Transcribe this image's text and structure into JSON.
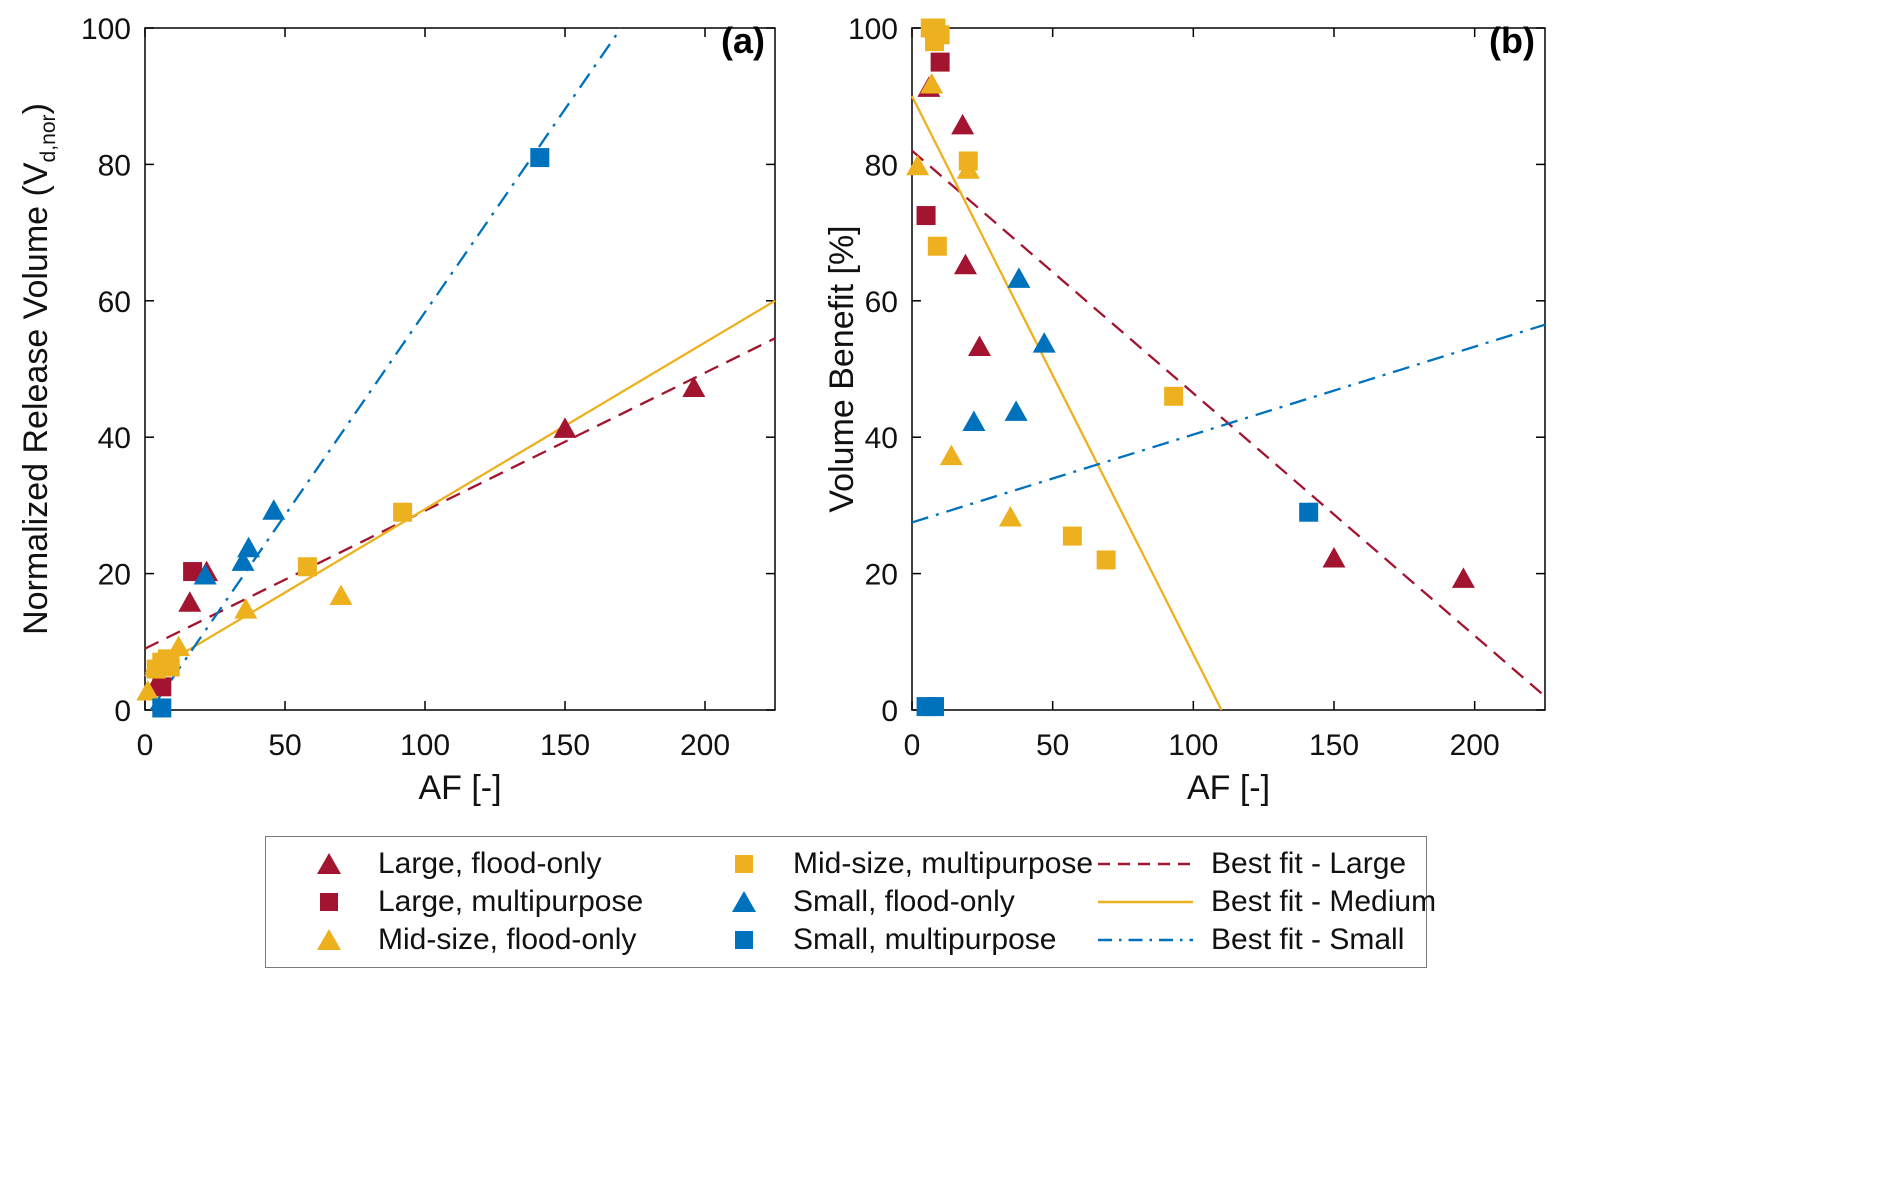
{
  "colors": {
    "large": "#A2142F",
    "medium": "#EDB120",
    "small": "#0072BD"
  },
  "legend": {
    "items": [
      {
        "label": "Large, flood-only",
        "icon": "marker",
        "shape": "triangle",
        "color": "large"
      },
      {
        "label": "Large, multipurpose",
        "icon": "marker",
        "shape": "square",
        "color": "large"
      },
      {
        "label": "Mid-size, flood-only",
        "icon": "marker",
        "shape": "triangle",
        "color": "medium"
      },
      {
        "label": "Mid-size, multipurpose",
        "icon": "marker",
        "shape": "square",
        "color": "medium"
      },
      {
        "label": "Small, flood-only",
        "icon": "marker",
        "shape": "triangle",
        "color": "small"
      },
      {
        "label": "Small, multipurpose",
        "icon": "marker",
        "shape": "square",
        "color": "small"
      },
      {
        "label": "Best fit - Large",
        "icon": "line",
        "dash": "dashed",
        "color": "large"
      },
      {
        "label": "Best fit - Medium",
        "icon": "line",
        "dash": "solid",
        "color": "medium"
      },
      {
        "label": "Best fit - Small",
        "icon": "line",
        "dash": "dashdot",
        "color": "small"
      }
    ]
  },
  "chart_data": [
    {
      "id": "a",
      "type": "scatter",
      "panel_label": "(a)",
      "xlabel": "AF [-]",
      "ylabel": "Normalized Release Volume (V_d,nor)",
      "ylabel_parts": {
        "pre": "Normalized Release Volume (V",
        "sub": "d,nor",
        "post": ")"
      },
      "xlim": [
        0,
        225
      ],
      "ylim": [
        0,
        100
      ],
      "xticks": [
        0,
        50,
        100,
        150,
        200
      ],
      "yticks": [
        0,
        20,
        40,
        60,
        80,
        100
      ],
      "grid": false,
      "series": [
        {
          "name": "Large, flood-only",
          "marker": "triangle",
          "color": "large",
          "points": [
            [
              4,
              3.5
            ],
            [
              16,
              15.5
            ],
            [
              22,
              20
            ],
            [
              150,
              41
            ],
            [
              196,
              47
            ]
          ]
        },
        {
          "name": "Large, multipurpose",
          "marker": "square",
          "color": "large",
          "points": [
            [
              6,
              3.4
            ],
            [
              17,
              20.3
            ]
          ]
        },
        {
          "name": "Mid-size, flood-only",
          "marker": "triangle",
          "color": "medium",
          "points": [
            [
              1,
              2.5
            ],
            [
              4,
              6.5
            ],
            [
              12,
              9
            ],
            [
              36,
              14.5
            ],
            [
              70,
              16.5
            ]
          ]
        },
        {
          "name": "Mid-size, multipurpose",
          "marker": "square",
          "color": "medium",
          "points": [
            [
              4,
              6
            ],
            [
              6,
              7
            ],
            [
              8,
              7.5
            ],
            [
              9,
              6.3
            ],
            [
              58,
              21
            ],
            [
              92,
              29
            ]
          ]
        },
        {
          "name": "Small, flood-only",
          "marker": "triangle",
          "color": "small",
          "points": [
            [
              21.5,
              19.5
            ],
            [
              35,
              21.5
            ],
            [
              37,
              23.5
            ],
            [
              46,
              29
            ]
          ]
        },
        {
          "name": "Small, multipurpose",
          "marker": "square",
          "color": "small",
          "points": [
            [
              6,
              0.3
            ],
            [
              141,
              81
            ]
          ]
        }
      ],
      "fit_lines": [
        {
          "name": "Best fit - Large",
          "color": "large",
          "dash": "dashed",
          "points": [
            [
              0,
              9
            ],
            [
              225,
              54.5
            ]
          ]
        },
        {
          "name": "Best fit - Medium",
          "color": "medium",
          "dash": "solid",
          "points": [
            [
              0,
              5
            ],
            [
              225,
              60
            ]
          ]
        },
        {
          "name": "Best fit - Small",
          "color": "small",
          "dash": "dashdot",
          "points": [
            [
              2,
              0
            ],
            [
              170,
              100
            ]
          ]
        }
      ]
    },
    {
      "id": "b",
      "type": "scatter",
      "panel_label": "(b)",
      "xlabel": "AF [-]",
      "ylabel": "Volume Benefit [%]",
      "xlim": [
        0,
        225
      ],
      "ylim": [
        0,
        100
      ],
      "xticks": [
        0,
        50,
        100,
        150,
        200
      ],
      "yticks": [
        0,
        20,
        40,
        60,
        80,
        100
      ],
      "grid": false,
      "series": [
        {
          "name": "Large, flood-only",
          "marker": "triangle",
          "color": "large",
          "points": [
            [
              6,
              91
            ],
            [
              18,
              85.5
            ],
            [
              19,
              65
            ],
            [
              24,
              53
            ],
            [
              150,
              22
            ],
            [
              196,
              19
            ]
          ]
        },
        {
          "name": "Large, multipurpose",
          "marker": "square",
          "color": "large",
          "points": [
            [
              10,
              95
            ],
            [
              5,
              72.5
            ]
          ]
        },
        {
          "name": "Mid-size, flood-only",
          "marker": "triangle",
          "color": "medium",
          "points": [
            [
              2,
              79.5
            ],
            [
              7,
              91.5
            ],
            [
              20,
              79
            ],
            [
              14,
              37
            ],
            [
              35,
              28
            ]
          ]
        },
        {
          "name": "Mid-size, multipurpose",
          "marker": "square",
          "color": "medium",
          "points": [
            [
              6.5,
              100
            ],
            [
              8.5,
              100
            ],
            [
              10,
              99
            ],
            [
              8,
              98
            ],
            [
              20,
              80.5
            ],
            [
              9,
              68
            ],
            [
              57,
              25.5
            ],
            [
              69,
              22
            ],
            [
              93,
              46
            ]
          ]
        },
        {
          "name": "Small, flood-only",
          "marker": "triangle",
          "color": "small",
          "points": [
            [
              38,
              63
            ],
            [
              47,
              53.5
            ],
            [
              22,
              42
            ],
            [
              37,
              43.5
            ]
          ]
        },
        {
          "name": "Small, multipurpose",
          "marker": "square",
          "color": "small",
          "points": [
            [
              5,
              0.5
            ],
            [
              8,
              0.5
            ],
            [
              141,
              29
            ]
          ]
        }
      ],
      "fit_lines": [
        {
          "name": "Best fit - Large",
          "color": "large",
          "dash": "dashed",
          "points": [
            [
              0,
              82
            ],
            [
              225,
              2
            ]
          ]
        },
        {
          "name": "Best fit - Medium",
          "color": "medium",
          "dash": "solid",
          "points": [
            [
              0,
              90
            ],
            [
              110,
              0
            ]
          ]
        },
        {
          "name": "Best fit - Small",
          "color": "small",
          "dash": "dashdot",
          "points": [
            [
              0,
              27.5
            ],
            [
              225,
              56.5
            ]
          ]
        }
      ]
    }
  ]
}
